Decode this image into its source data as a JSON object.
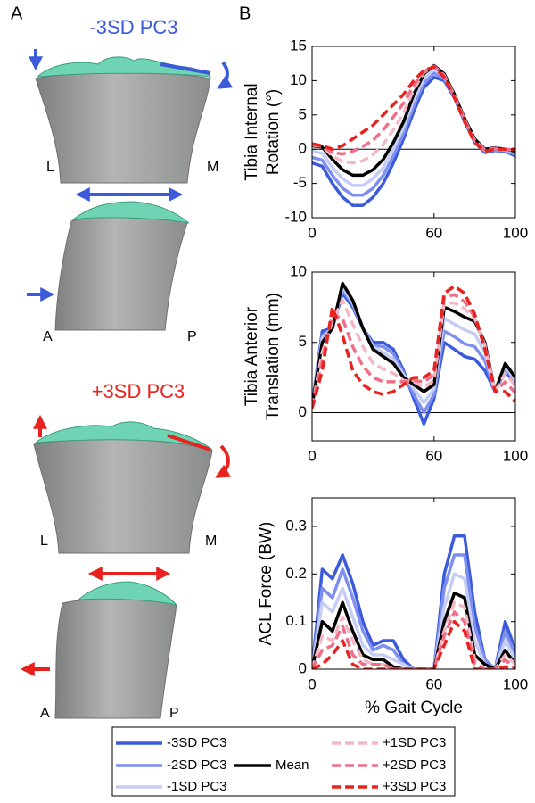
{
  "panel_a": {
    "label": "A",
    "views": [
      {
        "title": "-3SD PC3",
        "labels": [
          "L",
          "M"
        ]
      },
      {
        "labels": [
          "A",
          "P"
        ]
      },
      {
        "title": "+3SD PC3",
        "labels": [
          "L",
          "M"
        ]
      },
      {
        "labels": [
          "A",
          "P"
        ]
      }
    ]
  },
  "panel_b": {
    "label": "B"
  },
  "chart_data": [
    {
      "type": "line",
      "ylabel": [
        "Tibia Internal",
        "Rotation (°)"
      ],
      "x": [
        0,
        5,
        10,
        15,
        20,
        25,
        30,
        35,
        40,
        45,
        50,
        55,
        60,
        65,
        70,
        75,
        80,
        85,
        90,
        95,
        100
      ],
      "xlim": [
        0,
        100
      ],
      "xticks": [
        0,
        60,
        100
      ],
      "ylim": [
        -10,
        15
      ],
      "yticks": [
        -10,
        -5,
        0,
        5,
        10,
        15
      ],
      "zero_line": true,
      "series": [
        {
          "name": "-3SD PC3",
          "color": "#3b5bdb",
          "dash": false,
          "values": [
            -2,
            -2.5,
            -5,
            -7,
            -8.2,
            -8.2,
            -7,
            -5,
            -2,
            1.5,
            5.5,
            9,
            10.5,
            10,
            7.5,
            4,
            1,
            -0.5,
            -0.2,
            -0.3,
            -1
          ]
        },
        {
          "name": "-2SD PC3",
          "color": "#7f8ff0",
          "dash": false,
          "values": [
            -1.2,
            -1.6,
            -3.8,
            -5.7,
            -6.7,
            -6.7,
            -5.7,
            -3.8,
            -1,
            2.3,
            6.3,
            9.7,
            11.1,
            10.3,
            7.7,
            4.2,
            1.2,
            -0.3,
            -0.1,
            -0.2,
            -0.8
          ]
        },
        {
          "name": "-1SD PC3",
          "color": "#c6cdf5",
          "dash": false,
          "values": [
            -0.3,
            -0.6,
            -2.7,
            -4.3,
            -5.3,
            -5.3,
            -4.3,
            -2.7,
            0,
            3.2,
            7.2,
            10.3,
            11.6,
            10.7,
            7.8,
            4.3,
            1.3,
            -0.2,
            0.1,
            -0.1,
            -0.5
          ]
        },
        {
          "name": "Mean",
          "color": "#000000",
          "dash": false,
          "values": [
            0.5,
            0.3,
            -1.5,
            -3,
            -3.8,
            -3.8,
            -3,
            -1.5,
            1,
            4,
            8,
            11,
            12.2,
            11,
            8,
            4.5,
            1.5,
            0,
            0.2,
            0,
            -0.3
          ]
        },
        {
          "name": "+1SD PC3",
          "color": "#f4b8c4",
          "dash": true,
          "values": [
            0.6,
            0.4,
            -1,
            -1.8,
            -2,
            -1.7,
            -0.8,
            0.7,
            2.8,
            5.3,
            8.7,
            11.2,
            12.1,
            10.8,
            7.8,
            4.3,
            1.3,
            -0.1,
            0.1,
            0,
            -0.2
          ]
        },
        {
          "name": "+2SD PC3",
          "color": "#ef6f88",
          "dash": true,
          "values": [
            0.7,
            0.4,
            -0.5,
            -0.7,
            -0.3,
            0.4,
            1.3,
            2.8,
            4.7,
            6.7,
            9.3,
            11.3,
            12.1,
            10.7,
            7.7,
            4.2,
            1.2,
            -0.2,
            0.1,
            0,
            -0.1
          ]
        },
        {
          "name": "+3SD PC3",
          "color": "#e8231f",
          "dash": true,
          "values": [
            0.8,
            0.5,
            0,
            0.5,
            1.5,
            2.5,
            3.5,
            5,
            6.5,
            8,
            10,
            11.5,
            12,
            10.5,
            7.5,
            4,
            1,
            -0.3,
            0,
            0,
            0
          ]
        }
      ]
    },
    {
      "type": "line",
      "ylabel": [
        "Tibia Anterior",
        "Translation (mm)"
      ],
      "x": [
        0,
        5,
        10,
        15,
        20,
        25,
        30,
        35,
        40,
        45,
        50,
        55,
        60,
        65,
        70,
        75,
        80,
        85,
        90,
        95,
        100
      ],
      "xlim": [
        0,
        100
      ],
      "xticks": [
        0,
        60,
        100
      ],
      "ylim": [
        -2,
        10
      ],
      "yticks": [
        0,
        5,
        10
      ],
      "zero_line": true,
      "series": [
        {
          "name": "-3SD PC3",
          "color": "#3b5bdb",
          "dash": false,
          "values": [
            0.5,
            5.8,
            6,
            8.5,
            7.5,
            6,
            5,
            5,
            4.5,
            3,
            1,
            -0.8,
            1,
            5,
            4.5,
            4,
            3.8,
            3,
            1.5,
            3,
            2
          ]
        },
        {
          "name": "-2SD PC3",
          "color": "#7f8ff0",
          "dash": false,
          "values": [
            0.5,
            5.5,
            6,
            8.7,
            7.7,
            6,
            4.8,
            4.7,
            4.2,
            2.8,
            1.3,
            0,
            1.3,
            5.8,
            5.4,
            4.9,
            4.7,
            3.7,
            1.5,
            3.2,
            2.2
          ]
        },
        {
          "name": "-1SD PC3",
          "color": "#c6cdf5",
          "dash": false,
          "values": [
            0.5,
            5.3,
            6,
            9,
            7.8,
            6,
            4.7,
            4.3,
            3.8,
            2.7,
            1.7,
            0.7,
            1.7,
            6.7,
            6.3,
            5.9,
            5.6,
            4.3,
            1.5,
            3.3,
            2.3
          ]
        },
        {
          "name": "Mean",
          "color": "#000000",
          "dash": false,
          "values": [
            0.5,
            5,
            6,
            9.2,
            8,
            6,
            4.5,
            4,
            3.5,
            2.5,
            2,
            1.5,
            2,
            7.5,
            7.2,
            6.8,
            6.5,
            5,
            1.5,
            3.5,
            2.5
          ]
        },
        {
          "name": "+1SD PC3",
          "color": "#f4b8c4",
          "dash": true,
          "values": [
            0.4,
            4.3,
            6.5,
            8,
            6.3,
            4.7,
            3.5,
            3.1,
            2.8,
            2.3,
            2.2,
            1.8,
            2.3,
            7.8,
            7.8,
            7.4,
            6.7,
            4.8,
            1.5,
            2.8,
            1.9
          ]
        },
        {
          "name": "+2SD PC3",
          "color": "#ef6f88",
          "dash": true,
          "values": [
            0.4,
            3.7,
            7,
            6.7,
            4.7,
            3.3,
            2.5,
            2.2,
            2.2,
            2.2,
            2.3,
            2.2,
            2.7,
            8.2,
            8.4,
            7.9,
            6.8,
            4.7,
            1.5,
            2.2,
            1.4
          ]
        },
        {
          "name": "+3SD PC3",
          "color": "#e8231f",
          "dash": true,
          "values": [
            0.3,
            3,
            7.5,
            5.5,
            3,
            2,
            1.5,
            1.3,
            1.5,
            2,
            2.5,
            2.5,
            3,
            8.5,
            9,
            8.5,
            7,
            4.5,
            1.5,
            1.5,
            0.8
          ]
        }
      ]
    },
    {
      "type": "line",
      "ylabel": [
        "ACL Force (BW)"
      ],
      "xlabel": "% Gait Cycle",
      "x": [
        0,
        5,
        10,
        15,
        20,
        25,
        30,
        35,
        40,
        45,
        50,
        55,
        60,
        65,
        70,
        75,
        80,
        85,
        90,
        95,
        100
      ],
      "xlim": [
        0,
        100
      ],
      "xticks": [
        0,
        60,
        100
      ],
      "ylim": [
        0,
        0.36
      ],
      "yticks": [
        0,
        0.1,
        0.2,
        0.3
      ],
      "zero_line": false,
      "series": [
        {
          "name": "-3SD PC3",
          "color": "#3b5bdb",
          "dash": false,
          "values": [
            0,
            0.21,
            0.19,
            0.24,
            0.18,
            0.1,
            0.05,
            0.06,
            0.06,
            0.02,
            0,
            0,
            0,
            0.2,
            0.28,
            0.28,
            0.12,
            0.02,
            0,
            0.1,
            0.04
          ]
        },
        {
          "name": "-2SD PC3",
          "color": "#7f8ff0",
          "dash": false,
          "values": [
            0,
            0.17,
            0.15,
            0.21,
            0.15,
            0.08,
            0.04,
            0.05,
            0.04,
            0.01,
            0,
            0,
            0,
            0.17,
            0.24,
            0.24,
            0.09,
            0.02,
            0,
            0.08,
            0.03
          ]
        },
        {
          "name": "-1SD PC3",
          "color": "#c6cdf5",
          "dash": false,
          "values": [
            0,
            0.14,
            0.12,
            0.17,
            0.11,
            0.05,
            0.03,
            0.03,
            0.02,
            0.01,
            0,
            0,
            0,
            0.13,
            0.2,
            0.19,
            0.06,
            0.01,
            0,
            0.06,
            0.02
          ]
        },
        {
          "name": "Mean",
          "color": "#000000",
          "dash": false,
          "values": [
            0,
            0.1,
            0.08,
            0.14,
            0.08,
            0.03,
            0.02,
            0.02,
            0.005,
            0,
            0,
            0,
            0,
            0.1,
            0.16,
            0.15,
            0.03,
            0.01,
            0,
            0.04,
            0.01
          ]
        },
        {
          "name": "+1SD PC3",
          "color": "#f4b8c4",
          "dash": true,
          "values": [
            0,
            0.07,
            0.06,
            0.11,
            0.06,
            0.02,
            0.01,
            0.01,
            0,
            0,
            0,
            0,
            0,
            0.08,
            0.14,
            0.13,
            0.02,
            0,
            0,
            0.03,
            0.01
          ]
        },
        {
          "name": "+2SD PC3",
          "color": "#ef6f88",
          "dash": true,
          "values": [
            0,
            0.04,
            0.05,
            0.09,
            0.03,
            0.01,
            0.01,
            0.01,
            0,
            0,
            0,
            0,
            0,
            0.07,
            0.12,
            0.1,
            0.01,
            0,
            0,
            0.02,
            0
          ]
        },
        {
          "name": "+3SD PC3",
          "color": "#e8231f",
          "dash": true,
          "values": [
            0,
            0.01,
            0.03,
            0.06,
            0.01,
            0,
            0,
            0,
            0,
            0,
            0,
            0,
            0,
            0.05,
            0.1,
            0.08,
            0,
            0,
            0,
            0.005,
            0
          ]
        }
      ]
    }
  ]
}
